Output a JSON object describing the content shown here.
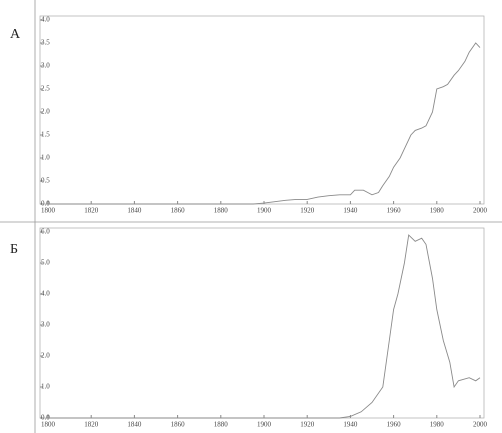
{
  "chart_data": [
    {
      "type": "line",
      "label": "А",
      "x": [
        1800,
        1895,
        1900,
        1905,
        1910,
        1915,
        1920,
        1925,
        1930,
        1935,
        1940,
        1942,
        1946,
        1948,
        1950,
        1953,
        1955,
        1958,
        1960,
        1963,
        1965,
        1968,
        1970,
        1973,
        1975,
        1978,
        1980,
        1983,
        1985,
        1988,
        1990,
        1993,
        1995,
        1998,
        2000
      ],
      "series": [
        {
          "color": "#8a8a8a",
          "values": [
            0,
            0,
            0.02,
            0.05,
            0.08,
            0.1,
            0.1,
            0.15,
            0.18,
            0.2,
            0.2,
            0.3,
            0.3,
            0.25,
            0.2,
            0.25,
            0.4,
            0.6,
            0.8,
            1.0,
            1.2,
            1.5,
            1.6,
            1.65,
            1.7,
            2.0,
            2.5,
            2.55,
            2.6,
            2.8,
            2.9,
            3.1,
            3.3,
            3.5,
            3.4
          ]
        }
      ],
      "xlim": [
        1800,
        2000
      ],
      "xticks": [
        1800,
        1820,
        1840,
        1860,
        1880,
        1900,
        1920,
        1940,
        1960,
        1980,
        2000
      ],
      "ylim": [
        0,
        4
      ],
      "yticks": [
        {
          "value": 0,
          "label": "0.0"
        },
        {
          "value": 0.5,
          "label": "0.5"
        },
        {
          "value": 1,
          "label": "1.0"
        },
        {
          "value": 1.5,
          "label": "1.5"
        },
        {
          "value": 2,
          "label": "2.0"
        },
        {
          "value": 2.5,
          "label": "2.5"
        },
        {
          "value": 3,
          "label": "3.0"
        },
        {
          "value": 3.5,
          "label": "3.5"
        },
        {
          "value": 4,
          "label": "4.0"
        }
      ]
    },
    {
      "type": "line",
      "label": "Б",
      "x": [
        1800,
        1935,
        1940,
        1945,
        1950,
        1955,
        1958,
        1960,
        1962,
        1965,
        1967,
        1970,
        1973,
        1975,
        1978,
        1980,
        1983,
        1986,
        1988,
        1990,
        1995,
        1998,
        2000
      ],
      "series": [
        {
          "color": "#8a8a8a",
          "values": [
            0,
            0,
            0.05,
            0.2,
            0.5,
            1.0,
            2.5,
            3.5,
            4.0,
            5.0,
            5.9,
            5.7,
            5.8,
            5.6,
            4.5,
            3.5,
            2.5,
            1.8,
            1.0,
            1.2,
            1.3,
            1.2,
            1.3
          ]
        }
      ],
      "xlim": [
        1800,
        2000
      ],
      "xticks": [
        1800,
        1820,
        1840,
        1860,
        1880,
        1900,
        1920,
        1940,
        1960,
        1980,
        2000
      ],
      "ylim": [
        0,
        6
      ],
      "yticks": [
        {
          "value": 0,
          "label": "0.0"
        },
        {
          "value": 1,
          "label": "1.0"
        },
        {
          "value": 2,
          "label": "2.0"
        },
        {
          "value": 3,
          "label": "3.0"
        },
        {
          "value": 4,
          "label": "4.0"
        },
        {
          "value": 5,
          "label": "5.0"
        },
        {
          "value": 6,
          "label": "6.0"
        }
      ]
    }
  ]
}
